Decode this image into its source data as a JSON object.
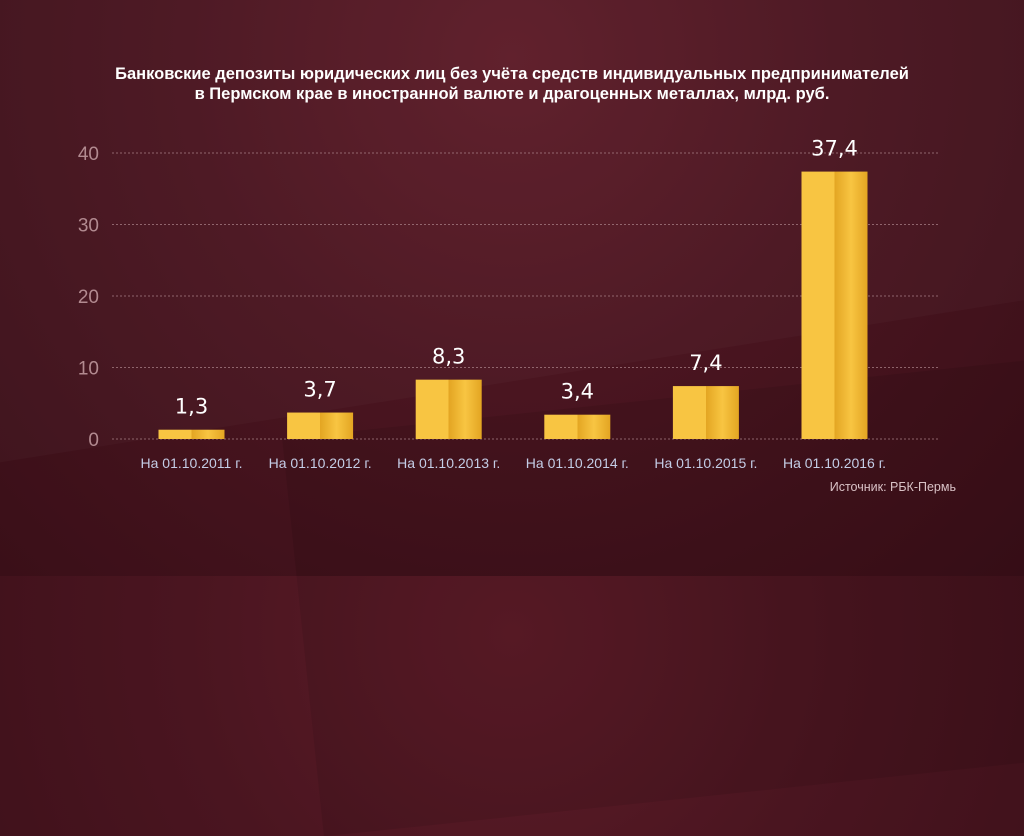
{
  "title_line1": "Банковские депозиты юридических лиц без учёта средств индивидуальных предпринимателей",
  "title_line2": "в Пермском крае в иностранной валюте и драгоценных металлах, млрд. руб.",
  "source": "Источник: РБК-Пермь",
  "colors": {
    "bar_light": "#f8c542",
    "bar_dark": "#e3a522",
    "grid": "#a77f86",
    "tick_label": "#b28a90",
    "category_label": "#c4cde6",
    "value_label": "#ffffff"
  },
  "chart_data": {
    "type": "bar",
    "title": "Банковские депозиты юридических лиц без учёта средств индивидуальных предпринимателей в Пермском крае в иностранной валюте и драгоценных металлах, млрд. руб.",
    "categories": [
      "На 01.10.2011 г.",
      "На 01.10.2012 г.",
      "На 01.10.2013 г.",
      "На 01.10.2014 г.",
      "На 01.10.2015 г.",
      "На 01.10.2016 г."
    ],
    "values": [
      1.3,
      3.7,
      8.3,
      3.4,
      7.4,
      37.4
    ],
    "value_labels": [
      "1,3",
      "3,7",
      "8,3",
      "3,4",
      "7,4",
      "37,4"
    ],
    "yticks": [
      0,
      10,
      20,
      30,
      40
    ],
    "ytick_labels": [
      "0",
      "10",
      "20",
      "30",
      "40"
    ],
    "ylim": [
      0,
      40
    ],
    "grid": true,
    "xlabel": "",
    "ylabel": ""
  }
}
